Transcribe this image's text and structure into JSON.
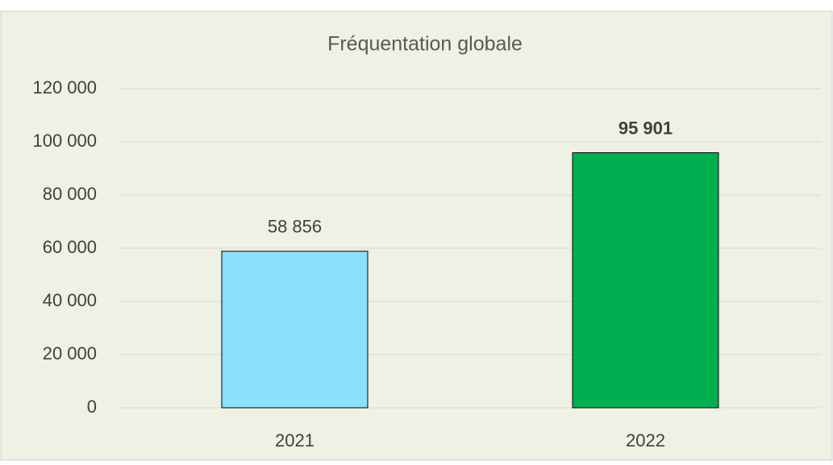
{
  "chart_data": {
    "type": "bar",
    "title": "Fréquentation globale",
    "categories": [
      "2021",
      "2022"
    ],
    "values": [
      58856,
      95901
    ],
    "value_labels": [
      "58 856",
      "95 901"
    ],
    "value_label_bold": [
      false,
      true
    ],
    "colors": [
      "#8be0fc",
      "#00b050"
    ],
    "ylim": [
      0,
      120000
    ],
    "yticks": [
      0,
      {
        "value": 20000,
        "label": "20 000"
      },
      {
        "value": 40000,
        "label": "40 000"
      },
      {
        "value": 60000,
        "label": "60 000"
      },
      {
        "value": 80000,
        "label": "80 000"
      },
      {
        "value": 100000,
        "label": "100 000"
      },
      {
        "value": 120000,
        "label": "120 000"
      }
    ],
    "grid": true
  }
}
